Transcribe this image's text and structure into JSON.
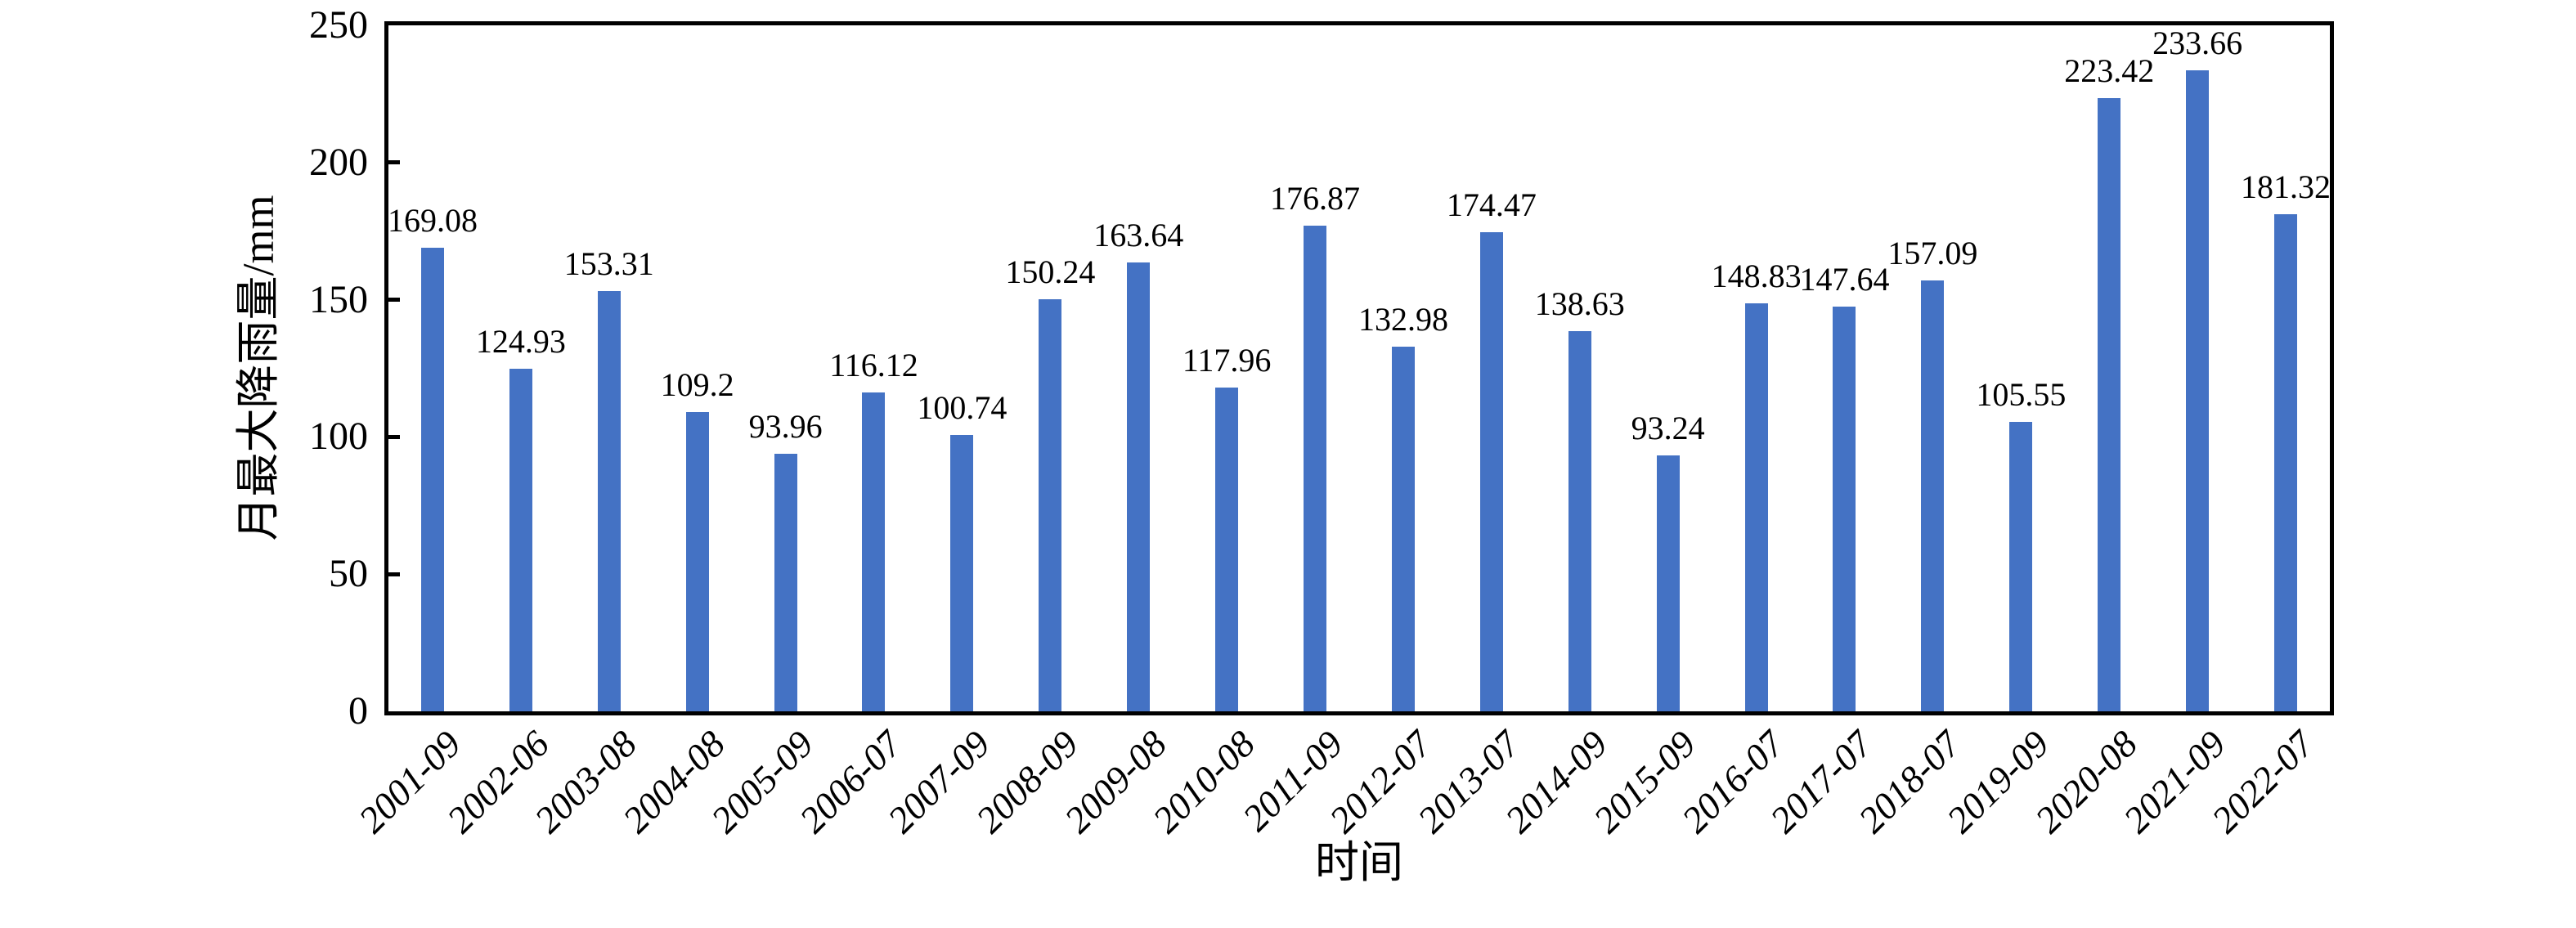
{
  "chart_data": {
    "type": "bar",
    "title": "",
    "xlabel": "时间",
    "ylabel": "月最大降雨量/mm",
    "categories": [
      "2001-09",
      "2002-06",
      "2003-08",
      "2004-08",
      "2005-09",
      "2006-07",
      "2007-09",
      "2008-09",
      "2009-08",
      "2010-08",
      "2011-09",
      "2012-07",
      "2013-07",
      "2014-09",
      "2015-09",
      "2016-07",
      "2017-07",
      "2018-07",
      "2019-09",
      "2020-08",
      "2021-09",
      "2022-07"
    ],
    "values": [
      169.08,
      124.93,
      153.31,
      109.2,
      93.96,
      116.12,
      100.74,
      150.24,
      163.64,
      117.96,
      176.87,
      132.98,
      174.47,
      138.63,
      93.24,
      148.83,
      147.64,
      157.09,
      105.55,
      223.42,
      233.66,
      181.32
    ],
    "ylim": [
      0,
      250
    ],
    "yticks": [
      0,
      50,
      100,
      150,
      200,
      250
    ],
    "inner_yticks": [
      50,
      100,
      150,
      200
    ],
    "bar_color": "#4472C4",
    "axis_color": "#000000",
    "text_color": "#000000",
    "grid": "off",
    "legend": "none",
    "value_labels": "above-bars"
  }
}
